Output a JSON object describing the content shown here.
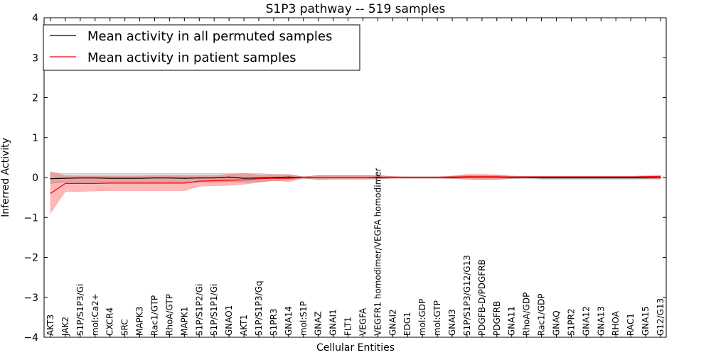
{
  "chart_data": {
    "type": "line",
    "title": "S1P3 pathway -- 519 samples",
    "xlabel": "Cellular Entities",
    "ylabel": "Inferred Activity",
    "ylim": [
      -4,
      4
    ],
    "yticks": [
      4,
      3,
      2,
      1,
      0,
      -1,
      -2,
      -3,
      -4
    ],
    "ytick_labels": [
      "4",
      "3",
      "2",
      "1",
      "0",
      "−1",
      "−2",
      "−3",
      "−4"
    ],
    "legend_position": "top-left",
    "categories": [
      "AKT3",
      "JAK2",
      "S1P/S1P3/Gi",
      "mol:Ca2+",
      "CXCR4",
      "SRC",
      "MAPK3",
      "Rac1/GTP",
      "RhoA/GTP",
      "MAPK1",
      "S1P/S1P2/Gi",
      "S1P/S1P1/Gi",
      "GNAO1",
      "AKT1",
      "S1P/S1P3/Gq",
      "S1PR3",
      "GNA14",
      "mol:S1P",
      "GNAZ",
      "GNAI1",
      "FLT1",
      "VEGFA",
      "VEGFR1 homodimer/VEGFA homodimer",
      "GNAI2",
      "EDG1",
      "mol:GDP",
      "mol:GTP",
      "GNAI3",
      "S1P/S1P3/G12/G13",
      "PDGFB-D/PDGFRB",
      "PDGFRB",
      "GNA11",
      "RhoA/GDP",
      "Rac1/GDP",
      "GNAQ",
      "S1PR2",
      "GNA12",
      "GNA13",
      "RHOA",
      "RAC1",
      "GNA15",
      "G12/G13"
    ],
    "series": [
      {
        "name": "Mean activity in all permuted samples",
        "color": "#000000",
        "values": [
          -0.03,
          -0.02,
          -0.01,
          -0.01,
          -0.02,
          -0.02,
          -0.02,
          -0.01,
          -0.01,
          -0.02,
          -0.01,
          -0.01,
          0.01,
          -0.02,
          -0.01,
          0.0,
          0.01,
          0.0,
          0.0,
          0.0,
          0.0,
          0.0,
          0.01,
          0.0,
          0.0,
          0.0,
          0.0,
          0.0,
          0.01,
          0.01,
          0.01,
          0.0,
          0.0,
          -0.01,
          -0.01,
          -0.01,
          -0.01,
          -0.01,
          -0.01,
          -0.01,
          -0.01,
          -0.01
        ],
        "lower": [
          -0.15,
          -0.12,
          -0.12,
          -0.12,
          -0.12,
          -0.12,
          -0.12,
          -0.12,
          -0.12,
          -0.12,
          -0.12,
          -0.12,
          -0.1,
          -0.12,
          -0.1,
          -0.08,
          -0.06,
          -0.02,
          -0.05,
          -0.04,
          -0.04,
          -0.04,
          -0.04,
          -0.02,
          -0.02,
          -0.02,
          -0.02,
          -0.03,
          -0.04,
          -0.05,
          -0.05,
          -0.03,
          -0.03,
          -0.04,
          -0.04,
          -0.04,
          -0.04,
          -0.04,
          -0.04,
          -0.04,
          -0.04,
          -0.04
        ],
        "upper": [
          0.12,
          0.1,
          0.1,
          0.1,
          0.1,
          0.1,
          0.1,
          0.1,
          0.1,
          0.1,
          0.1,
          0.1,
          0.1,
          0.1,
          0.1,
          0.08,
          0.06,
          0.02,
          0.05,
          0.05,
          0.05,
          0.05,
          0.05,
          0.02,
          0.02,
          0.02,
          0.02,
          0.03,
          0.05,
          0.05,
          0.05,
          0.03,
          0.03,
          0.03,
          0.03,
          0.03,
          0.03,
          0.03,
          0.03,
          0.03,
          0.03,
          0.03
        ]
      },
      {
        "name": "Mean activity in patient samples",
        "color": "#ff0000",
        "values": [
          -0.4,
          -0.15,
          -0.15,
          -0.15,
          -0.14,
          -0.14,
          -0.14,
          -0.14,
          -0.14,
          -0.14,
          -0.09,
          -0.08,
          -0.07,
          -0.06,
          -0.03,
          -0.02,
          -0.02,
          0.0,
          0.0,
          0.0,
          0.0,
          0.0,
          0.0,
          0.0,
          0.0,
          0.0,
          0.0,
          0.01,
          0.02,
          0.02,
          0.02,
          0.01,
          0.01,
          0.01,
          0.01,
          0.01,
          0.01,
          0.01,
          0.01,
          0.01,
          0.02,
          0.03
        ],
        "lower": [
          -0.9,
          -0.35,
          -0.35,
          -0.34,
          -0.33,
          -0.33,
          -0.33,
          -0.33,
          -0.33,
          -0.33,
          -0.22,
          -0.21,
          -0.2,
          -0.17,
          -0.12,
          -0.08,
          -0.1,
          -0.02,
          -0.05,
          -0.04,
          -0.04,
          -0.04,
          -0.03,
          -0.02,
          -0.02,
          -0.02,
          -0.02,
          -0.02,
          -0.04,
          -0.05,
          -0.04,
          -0.02,
          -0.01,
          -0.01,
          -0.01,
          -0.01,
          -0.01,
          -0.01,
          -0.01,
          -0.01,
          0.0,
          0.0
        ],
        "upper": [
          0.15,
          0.05,
          0.04,
          0.04,
          0.04,
          0.04,
          0.04,
          0.05,
          0.05,
          0.05,
          0.05,
          0.05,
          0.08,
          0.1,
          0.07,
          0.07,
          0.08,
          0.02,
          0.05,
          0.05,
          0.05,
          0.05,
          0.05,
          0.03,
          0.02,
          0.02,
          0.02,
          0.04,
          0.08,
          0.08,
          0.07,
          0.04,
          0.03,
          0.03,
          0.03,
          0.03,
          0.03,
          0.03,
          0.03,
          0.03,
          0.05,
          0.06
        ]
      }
    ]
  }
}
